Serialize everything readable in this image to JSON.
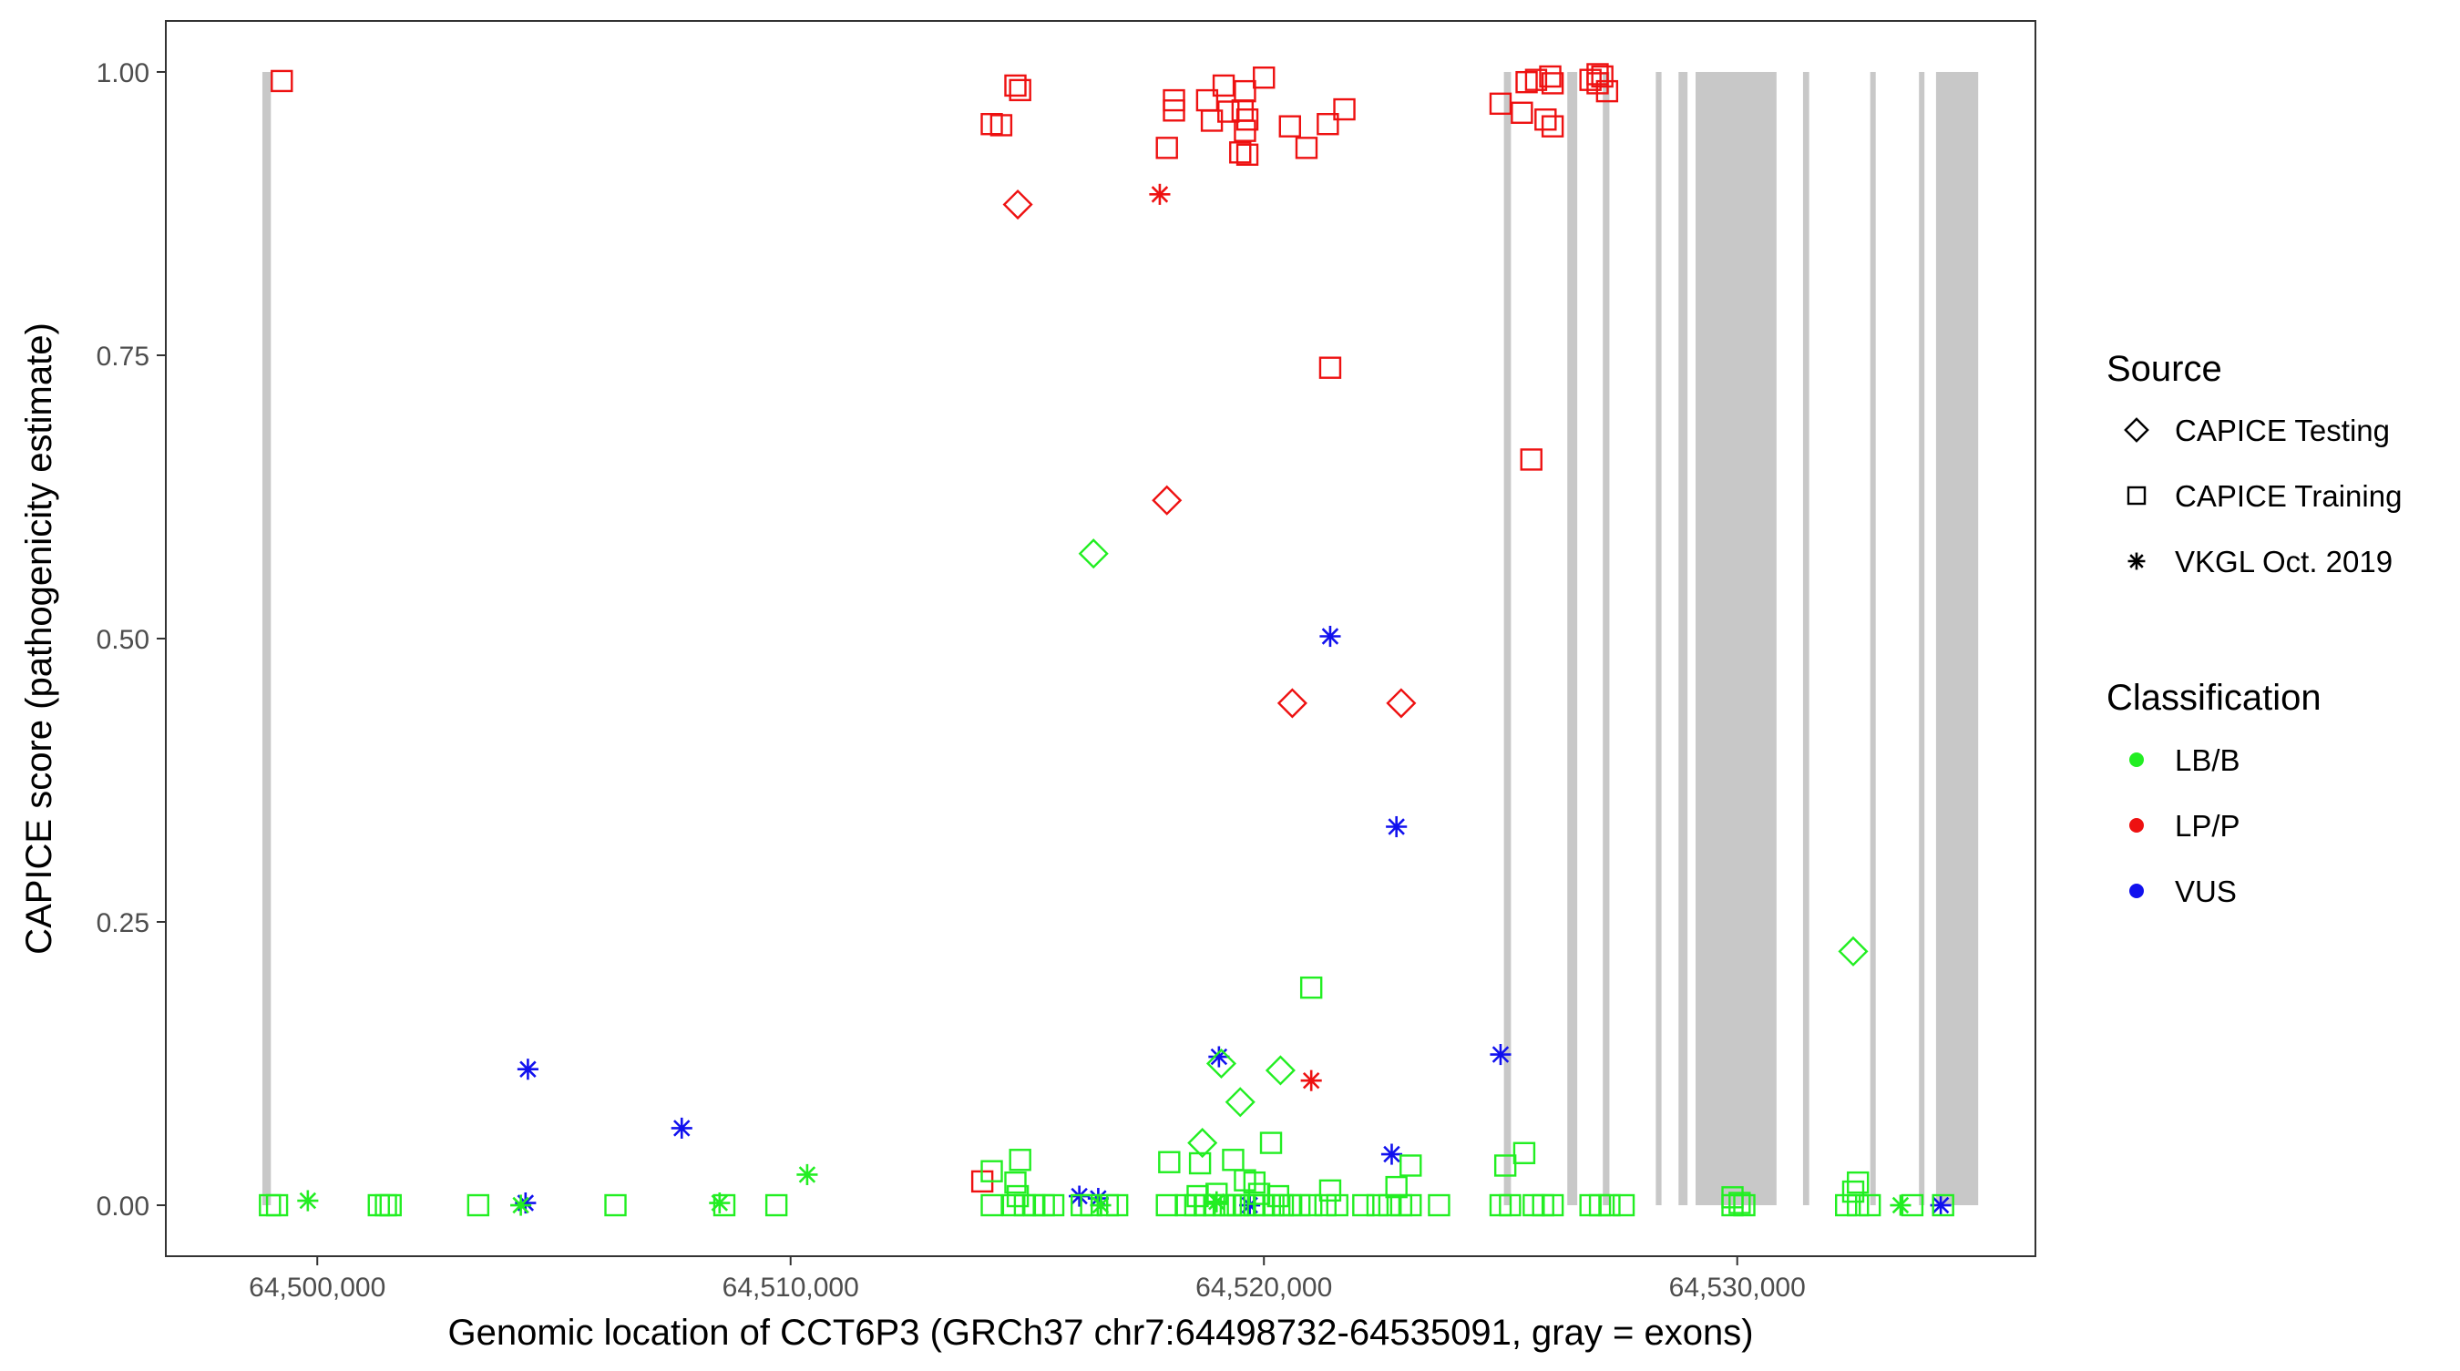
{
  "chart_data": {
    "type": "scatter",
    "title": "",
    "xlabel": "Genomic location of CCT6P3 (GRCh37 chr7:64498732-64535091, gray = exons)",
    "ylabel": "CAPICE score (pathogenicity estimate)",
    "xlim": [
      64496800,
      64536300
    ],
    "ylim": [
      -0.045,
      1.045
    ],
    "x_ticks": [
      64500000,
      64510000,
      64520000,
      64530000
    ],
    "x_tick_labels": [
      "64,500,000",
      "64,510,000",
      "64,520,000",
      "64,530,000"
    ],
    "y_ticks": [
      0,
      0.25,
      0.5,
      0.75,
      1
    ],
    "y_tick_labels": [
      "0.00",
      "0.25",
      "0.50",
      "0.75",
      "1.00"
    ],
    "grid": false,
    "legend_position": "right",
    "colors": {
      "LB/B": "#22ee22",
      "LP/P": "#ee1111",
      "VUS": "#1111ee",
      "exon": "#c8c8c8"
    },
    "exons": [
      [
        64498840,
        64499020
      ],
      [
        64525070,
        64525220
      ],
      [
        64526410,
        64526620
      ],
      [
        64527160,
        64527300
      ],
      [
        64528280,
        64528400
      ],
      [
        64528760,
        64528950
      ],
      [
        64529120,
        64530830
      ],
      [
        64531390,
        64531520
      ],
      [
        64532810,
        64532900
      ],
      [
        64533840,
        64533930
      ],
      [
        64534200,
        64535091
      ]
    ],
    "legend": {
      "source_title": "Source",
      "source_items": [
        {
          "label": "CAPICE Testing",
          "shape": "diamond"
        },
        {
          "label": "CAPICE Training",
          "shape": "square"
        },
        {
          "label": "VKGL Oct. 2019",
          "shape": "asterisk"
        }
      ],
      "class_title": "Classification",
      "class_items": [
        {
          "label": "LB/B",
          "color": "#22ee22"
        },
        {
          "label": "LP/P",
          "color": "#ee1111"
        },
        {
          "label": "VUS",
          "color": "#1111ee"
        }
      ]
    },
    "series": [
      {
        "classification": "LP/P",
        "source": "CAPICE Training",
        "shape": "square",
        "points": [
          [
            64499250,
            0.992
          ],
          [
            64514250,
            0.954
          ],
          [
            64514450,
            0.953
          ],
          [
            64514750,
            0.988
          ],
          [
            64514850,
            0.984
          ],
          [
            64517950,
            0.933
          ],
          [
            64518100,
            0.975
          ],
          [
            64518100,
            0.966
          ],
          [
            64518800,
            0.975
          ],
          [
            64518900,
            0.957
          ],
          [
            64519150,
            0.988
          ],
          [
            64519250,
            0.965
          ],
          [
            64519600,
            0.983
          ],
          [
            64519550,
            0.966
          ],
          [
            64519650,
            0.958
          ],
          [
            64519600,
            0.948
          ],
          [
            64519500,
            0.929
          ],
          [
            64519650,
            0.927
          ],
          [
            64520000,
            0.995
          ],
          [
            64520550,
            0.952
          ],
          [
            64520900,
            0.933
          ],
          [
            64521350,
            0.954
          ],
          [
            64521700,
            0.967
          ],
          [
            64521400,
            0.739
          ],
          [
            64525000,
            0.972
          ],
          [
            64525450,
            0.964
          ],
          [
            64525550,
            0.991
          ],
          [
            64525750,
            0.993
          ],
          [
            64525650,
            0.658
          ],
          [
            64526050,
            0.996
          ],
          [
            64526100,
            0.99
          ],
          [
            64525950,
            0.958
          ],
          [
            64526100,
            0.952
          ],
          [
            64526900,
            0.993
          ],
          [
            64527050,
            0.998
          ],
          [
            64527150,
            0.996
          ],
          [
            64527050,
            0.99
          ],
          [
            64527250,
            0.983
          ],
          [
            64514050,
            0.021
          ]
        ]
      },
      {
        "classification": "LP/P",
        "source": "CAPICE Testing",
        "shape": "diamond",
        "points": [
          [
            64514800,
            0.883
          ],
          [
            64517950,
            0.622
          ],
          [
            64520600,
            0.443
          ],
          [
            64522900,
            0.443
          ]
        ]
      },
      {
        "classification": "LP/P",
        "source": "VKGL Oct. 2019",
        "shape": "asterisk",
        "points": [
          [
            64517800,
            0.892
          ],
          [
            64521000,
            0.11
          ]
        ]
      },
      {
        "classification": "VUS",
        "source": "VKGL Oct. 2019",
        "shape": "asterisk",
        "points": [
          [
            64504450,
            0.12
          ],
          [
            64507700,
            0.068
          ],
          [
            64519050,
            0.131
          ],
          [
            64521400,
            0.502
          ],
          [
            64522800,
            0.334
          ],
          [
            64525000,
            0.133
          ],
          [
            64522700,
            0.045
          ],
          [
            64516100,
            0.008
          ],
          [
            64516500,
            0.006
          ],
          [
            64504400,
            0.002
          ],
          [
            64519700,
            0.0
          ],
          [
            64534300,
            0.0
          ]
        ]
      },
      {
        "classification": "LB/B",
        "source": "CAPICE Testing",
        "shape": "diamond",
        "points": [
          [
            64516400,
            0.575
          ],
          [
            64519100,
            0.125
          ],
          [
            64520350,
            0.119
          ],
          [
            64519500,
            0.091
          ],
          [
            64518700,
            0.055
          ],
          [
            64532450,
            0.224
          ]
        ]
      },
      {
        "classification": "LB/B",
        "source": "CAPICE Training",
        "shape": "square",
        "points": [
          [
            64521000,
            0.192
          ],
          [
            64514250,
            0.03
          ],
          [
            64514850,
            0.04
          ],
          [
            64514750,
            0.02
          ],
          [
            64514800,
            0.008
          ],
          [
            64518000,
            0.038
          ],
          [
            64519350,
            0.04
          ],
          [
            64520150,
            0.055
          ],
          [
            64518650,
            0.037
          ],
          [
            64519600,
            0.022
          ],
          [
            64519800,
            0.02
          ],
          [
            64521400,
            0.013
          ],
          [
            64522800,
            0.016
          ],
          [
            64523100,
            0.035
          ],
          [
            64525100,
            0.035
          ],
          [
            64525500,
            0.046
          ],
          [
            64529900,
            0.007
          ],
          [
            64532550,
            0.02
          ],
          [
            64532450,
            0.012
          ],
          [
            64530050,
            0.002
          ],
          [
            64499000,
            0.0
          ],
          [
            64499150,
            0.0
          ],
          [
            64501300,
            0.0
          ],
          [
            64501450,
            0.0
          ],
          [
            64501550,
            0.0
          ],
          [
            64503400,
            0.0
          ],
          [
            64506300,
            0.0
          ],
          [
            64508600,
            0.0
          ],
          [
            64509700,
            0.0
          ],
          [
            64514250,
            0.0
          ],
          [
            64514700,
            0.0
          ],
          [
            64514950,
            0.0
          ],
          [
            64515150,
            0.0
          ],
          [
            64515350,
            0.0
          ],
          [
            64515550,
            0.0
          ],
          [
            64516150,
            0.0
          ],
          [
            64516350,
            0.0
          ],
          [
            64516700,
            0.0
          ],
          [
            64516900,
            0.0
          ],
          [
            64517950,
            0.0
          ],
          [
            64518350,
            0.0
          ],
          [
            64518550,
            0.0
          ],
          [
            64518750,
            0.0
          ],
          [
            64518950,
            0.0
          ],
          [
            64519150,
            0.0
          ],
          [
            64519300,
            0.0
          ],
          [
            64519450,
            0.0
          ],
          [
            64519600,
            0.0
          ],
          [
            64519800,
            0.0
          ],
          [
            64520000,
            0.0
          ],
          [
            64520200,
            0.0
          ],
          [
            64520400,
            0.0
          ],
          [
            64520550,
            0.0
          ],
          [
            64520750,
            0.0
          ],
          [
            64521000,
            0.0
          ],
          [
            64521300,
            0.0
          ],
          [
            64521550,
            0.0
          ],
          [
            64522100,
            0.0
          ],
          [
            64522400,
            0.0
          ],
          [
            64522650,
            0.0
          ],
          [
            64522900,
            0.0
          ],
          [
            64523100,
            0.0
          ],
          [
            64523700,
            0.0
          ],
          [
            64525000,
            0.0
          ],
          [
            64525200,
            0.0
          ],
          [
            64525700,
            0.0
          ],
          [
            64525900,
            0.0
          ],
          [
            64526100,
            0.0
          ],
          [
            64526900,
            0.0
          ],
          [
            64527100,
            0.0
          ],
          [
            64527300,
            0.0
          ],
          [
            64527600,
            0.0
          ],
          [
            64529900,
            0.0
          ],
          [
            64530150,
            0.0
          ],
          [
            64532300,
            0.0
          ],
          [
            64532550,
            0.0
          ],
          [
            64532800,
            0.0
          ],
          [
            64533700,
            0.0
          ],
          [
            64534350,
            0.0
          ],
          [
            64518600,
            0.008
          ],
          [
            64519000,
            0.01
          ],
          [
            64519900,
            0.01
          ],
          [
            64520300,
            0.008
          ]
        ]
      },
      {
        "classification": "LB/B",
        "source": "VKGL Oct. 2019",
        "shape": "asterisk",
        "points": [
          [
            64499800,
            0.004
          ],
          [
            64504300,
            0.0
          ],
          [
            64508500,
            0.002
          ],
          [
            64510350,
            0.027
          ],
          [
            64516550,
            0.0
          ],
          [
            64533450,
            0.0
          ],
          [
            64519000,
            0.003
          ]
        ]
      }
    ]
  }
}
